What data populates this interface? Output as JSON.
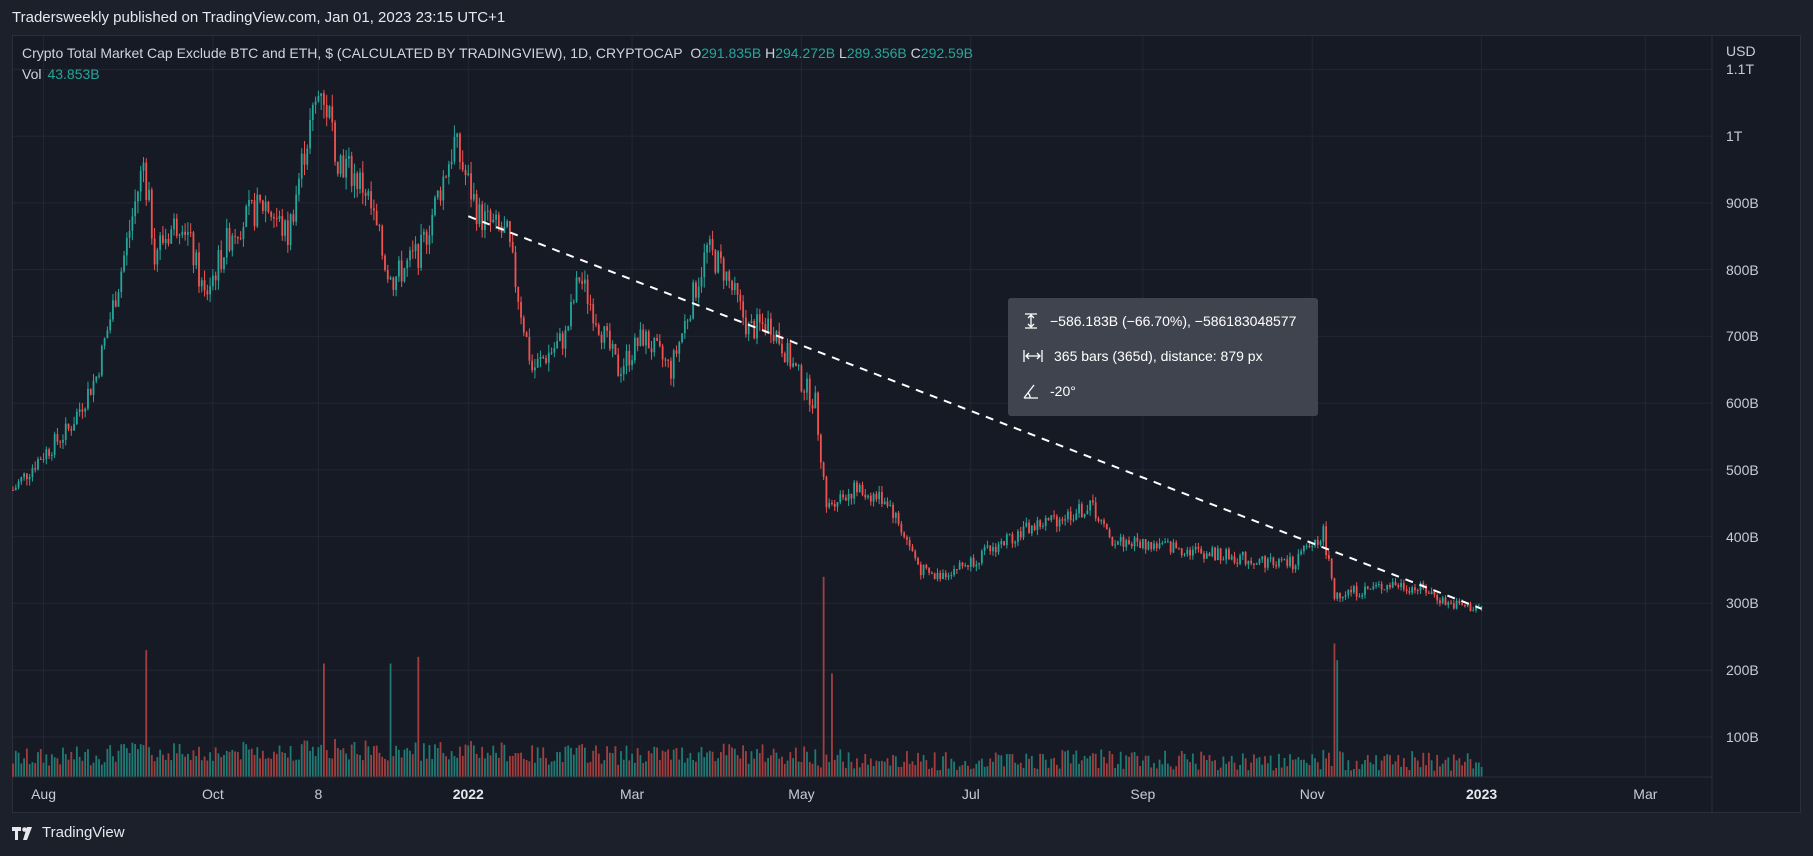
{
  "publish_line": "Tradersweekly published on TradingView.com, Jan 01, 2023 23:15 UTC+1",
  "brand": "TradingView",
  "legend": {
    "symbol": "Crypto Total Market Cap Exclude BTC and ETH, $ (CALCULATED BY TRADINGVIEW), 1D, CRYPTOCAP",
    "o_label": "O",
    "o_value": "291.835B",
    "h_label": "H",
    "h_value": "294.272B",
    "l_label": "L",
    "l_value": "289.356B",
    "c_label": "C",
    "c_value": "292.59B",
    "vol_label": "Vol",
    "vol_value": "43.853B"
  },
  "measure": {
    "price_range": "−586.183B (−66.70%), −586183048577",
    "bars_range": "365 bars (365d), distance: 879 px",
    "angle": "-20°"
  },
  "colors": {
    "up": "#26a69a",
    "down": "#ef5350",
    "up_vol": "#1f7a74",
    "down_vol": "#a23f3e"
  },
  "chart_data": {
    "type": "candlestick",
    "title": "Crypto Total Market Cap Exclude BTC and ETH",
    "currency": "USD",
    "x_start": "2021-07-21",
    "x_end": "2023-03-25",
    "ylim": [
      40,
      1150
    ],
    "y_unit": "B",
    "y_ticks": [
      {
        "value": 100,
        "label": "100B"
      },
      {
        "value": 200,
        "label": "200B"
      },
      {
        "value": 300,
        "label": "300B"
      },
      {
        "value": 400,
        "label": "400B"
      },
      {
        "value": 500,
        "label": "500B"
      },
      {
        "value": 600,
        "label": "600B"
      },
      {
        "value": 700,
        "label": "700B"
      },
      {
        "value": 800,
        "label": "800B"
      },
      {
        "value": 900,
        "label": "900B"
      },
      {
        "value": 1000,
        "label": "1T"
      },
      {
        "value": 1100,
        "label": "1.1T"
      }
    ],
    "x_ticks": [
      {
        "date": "2021-08-01",
        "label": "Aug",
        "bold": false
      },
      {
        "date": "2021-10-01",
        "label": "Oct",
        "bold": false
      },
      {
        "date": "2021-11-08",
        "label": "8",
        "bold": false
      },
      {
        "date": "2022-01-01",
        "label": "2022",
        "bold": true
      },
      {
        "date": "2022-03-01",
        "label": "Mar",
        "bold": false
      },
      {
        "date": "2022-05-01",
        "label": "May",
        "bold": false
      },
      {
        "date": "2022-07-01",
        "label": "Jul",
        "bold": false
      },
      {
        "date": "2022-09-01",
        "label": "Sep",
        "bold": false
      },
      {
        "date": "2022-11-01",
        "label": "Nov",
        "bold": false
      },
      {
        "date": "2023-01-01",
        "label": "2023",
        "bold": true
      },
      {
        "date": "2023-03-01",
        "label": "Mar",
        "bold": false
      }
    ],
    "close_path": [
      {
        "date": "2021-07-21",
        "value": 470
      },
      {
        "date": "2021-07-31",
        "value": 520
      },
      {
        "date": "2021-08-10",
        "value": 560
      },
      {
        "date": "2021-08-20",
        "value": 640
      },
      {
        "date": "2021-08-28",
        "value": 780
      },
      {
        "date": "2021-09-06",
        "value": 960
      },
      {
        "date": "2021-09-10",
        "value": 830
      },
      {
        "date": "2021-09-20",
        "value": 880
      },
      {
        "date": "2021-09-28",
        "value": 760
      },
      {
        "date": "2021-10-08",
        "value": 860
      },
      {
        "date": "2021-10-20",
        "value": 900
      },
      {
        "date": "2021-10-28",
        "value": 850
      },
      {
        "date": "2021-11-03",
        "value": 980
      },
      {
        "date": "2021-11-09",
        "value": 1080
      },
      {
        "date": "2021-11-15",
        "value": 970
      },
      {
        "date": "2021-11-25",
        "value": 920
      },
      {
        "date": "2021-12-04",
        "value": 780
      },
      {
        "date": "2021-12-15",
        "value": 830
      },
      {
        "date": "2021-12-27",
        "value": 990
      },
      {
        "date": "2022-01-05",
        "value": 880
      },
      {
        "date": "2022-01-15",
        "value": 850
      },
      {
        "date": "2022-01-24",
        "value": 650
      },
      {
        "date": "2022-02-05",
        "value": 700
      },
      {
        "date": "2022-02-10",
        "value": 790
      },
      {
        "date": "2022-02-24",
        "value": 650
      },
      {
        "date": "2022-03-05",
        "value": 700
      },
      {
        "date": "2022-03-15",
        "value": 650
      },
      {
        "date": "2022-03-28",
        "value": 830
      },
      {
        "date": "2022-04-03",
        "value": 800
      },
      {
        "date": "2022-04-12",
        "value": 710
      },
      {
        "date": "2022-04-20",
        "value": 720
      },
      {
        "date": "2022-04-30",
        "value": 640
      },
      {
        "date": "2022-05-06",
        "value": 600
      },
      {
        "date": "2022-05-10",
        "value": 450
      },
      {
        "date": "2022-05-20",
        "value": 470
      },
      {
        "date": "2022-06-01",
        "value": 455
      },
      {
        "date": "2022-06-13",
        "value": 350
      },
      {
        "date": "2022-06-18",
        "value": 340
      },
      {
        "date": "2022-06-30",
        "value": 360
      },
      {
        "date": "2022-07-20",
        "value": 410
      },
      {
        "date": "2022-08-14",
        "value": 445
      },
      {
        "date": "2022-08-20",
        "value": 395
      },
      {
        "date": "2022-09-10",
        "value": 385
      },
      {
        "date": "2022-09-25",
        "value": 375
      },
      {
        "date": "2022-10-10",
        "value": 365
      },
      {
        "date": "2022-10-25",
        "value": 360
      },
      {
        "date": "2022-11-05",
        "value": 405
      },
      {
        "date": "2022-11-09",
        "value": 315
      },
      {
        "date": "2022-11-20",
        "value": 320
      },
      {
        "date": "2022-11-30",
        "value": 330
      },
      {
        "date": "2022-12-12",
        "value": 320
      },
      {
        "date": "2022-12-20",
        "value": 300
      },
      {
        "date": "2023-01-01",
        "value": 292
      }
    ],
    "volume_spikes": [
      {
        "date": "2021-09-07",
        "value": 230
      },
      {
        "date": "2021-11-10",
        "value": 210
      },
      {
        "date": "2021-12-04",
        "value": 210
      },
      {
        "date": "2021-12-14",
        "value": 220
      },
      {
        "date": "2022-05-09",
        "value": 340
      },
      {
        "date": "2022-05-12",
        "value": 195
      },
      {
        "date": "2022-11-09",
        "value": 240
      },
      {
        "date": "2022-11-10",
        "value": 215
      }
    ],
    "trendline": {
      "start_date": "2022-01-01",
      "start_value": 880,
      "end_date": "2023-01-01",
      "end_value": 292
    }
  }
}
